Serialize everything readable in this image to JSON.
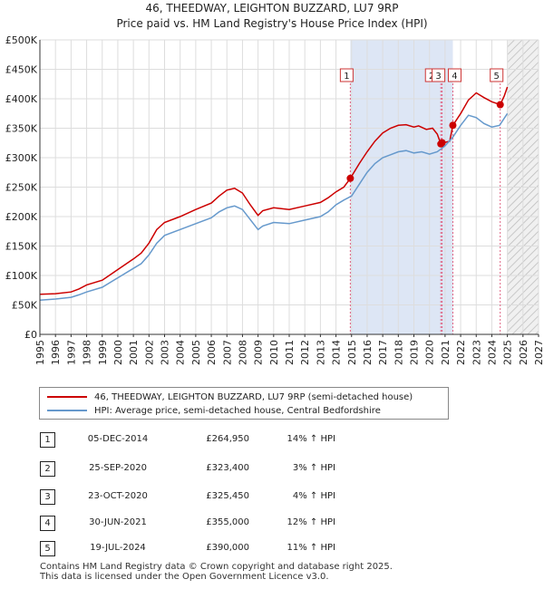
{
  "header": {
    "title_line1": "46, THEEDWAY, LEIGHTON BUZZARD, LU7 9RP",
    "title_line2": "Price paid vs. HM Land Registry's House Price Index (HPI)"
  },
  "colors": {
    "property": "#cc0000",
    "hpi": "#6699cc",
    "shade": "#dde6f5",
    "marker_line": "#e06080",
    "grid": "#dddddd"
  },
  "chart_data": {
    "type": "line",
    "xlim": [
      1995,
      2027
    ],
    "ylim": [
      0,
      500000
    ],
    "x_ticks": [
      "1995",
      "1996",
      "1997",
      "1998",
      "1999",
      "2000",
      "2001",
      "2002",
      "2003",
      "2004",
      "2005",
      "2006",
      "2007",
      "2008",
      "2009",
      "2010",
      "2011",
      "2012",
      "2013",
      "2014",
      "2015",
      "2016",
      "2017",
      "2018",
      "2019",
      "2020",
      "2021",
      "2022",
      "2023",
      "2024",
      "2025",
      "2026",
      "2027"
    ],
    "y_ticks": [
      {
        "value": 0,
        "label": "£0"
      },
      {
        "value": 50000,
        "label": "£50K"
      },
      {
        "value": 100000,
        "label": "£100K"
      },
      {
        "value": 150000,
        "label": "£150K"
      },
      {
        "value": 200000,
        "label": "£200K"
      },
      {
        "value": 250000,
        "label": "£250K"
      },
      {
        "value": 300000,
        "label": "£300K"
      },
      {
        "value": 350000,
        "label": "£350K"
      },
      {
        "value": 400000,
        "label": "£400K"
      },
      {
        "value": 450000,
        "label": "£450K"
      },
      {
        "value": 500000,
        "label": "£500K"
      }
    ],
    "shaded_range": [
      2014.92,
      2021.5
    ],
    "forecast_from": 2025.0,
    "series": [
      {
        "name": "46, THEEDWAY, LEIGHTON BUZZARD, LU7 9RP (semi-detached house)",
        "role": "property",
        "x": [
          1995,
          1996,
          1997,
          1997.5,
          1998,
          1999,
          2000,
          2001,
          2001.5,
          2002,
          2002.5,
          2003,
          2004,
          2005,
          2006,
          2006.5,
          2007,
          2007.5,
          2008,
          2008.5,
          2009,
          2009.3,
          2010,
          2011,
          2012,
          2013,
          2013.5,
          2014,
          2014.5,
          2014.92,
          2015.5,
          2016,
          2016.5,
          2017,
          2017.5,
          2018,
          2018.5,
          2019,
          2019.3,
          2019.8,
          2020.2,
          2020.5,
          2020.73,
          2020.81,
          2021.0,
          2021.3,
          2021.5,
          2022,
          2022.5,
          2023,
          2023.5,
          2024,
          2024.54,
          2024.8,
          2025.0
        ],
        "y": [
          68000,
          69000,
          72000,
          77000,
          84000,
          92000,
          110000,
          128000,
          138000,
          155000,
          178000,
          190000,
          200000,
          212000,
          223000,
          235000,
          245000,
          248000,
          240000,
          220000,
          202000,
          210000,
          215000,
          212000,
          218000,
          224000,
          232000,
          242000,
          250000,
          264950,
          290000,
          310000,
          328000,
          342000,
          350000,
          355000,
          356000,
          352000,
          354000,
          348000,
          350000,
          340000,
          323400,
          325450,
          326000,
          328000,
          355000,
          375000,
          398000,
          410000,
          402000,
          395000,
          390000,
          405000,
          420000
        ]
      },
      {
        "name": "HPI: Average price, semi-detached house, Central Bedfordshire",
        "role": "hpi",
        "x": [
          1995,
          1996,
          1997,
          1997.5,
          1998,
          1999,
          2000,
          2001,
          2001.5,
          2002,
          2002.5,
          2003,
          2004,
          2005,
          2006,
          2006.5,
          2007,
          2007.5,
          2008,
          2008.5,
          2009,
          2009.3,
          2010,
          2011,
          2012,
          2013,
          2013.5,
          2014,
          2014.5,
          2015,
          2015.5,
          2016,
          2016.5,
          2017,
          2017.5,
          2018,
          2018.5,
          2019,
          2019.5,
          2020,
          2020.5,
          2021,
          2021.5,
          2022,
          2022.5,
          2023,
          2023.5,
          2024,
          2024.5,
          2025.0
        ],
        "y": [
          58000,
          60000,
          63000,
          67000,
          72000,
          80000,
          96000,
          112000,
          120000,
          135000,
          155000,
          168000,
          178000,
          188000,
          198000,
          208000,
          215000,
          218000,
          212000,
          195000,
          178000,
          184000,
          190000,
          188000,
          194000,
          200000,
          208000,
          220000,
          228000,
          235000,
          255000,
          275000,
          290000,
          300000,
          305000,
          310000,
          312000,
          308000,
          310000,
          306000,
          310000,
          320000,
          335000,
          355000,
          372000,
          368000,
          358000,
          352000,
          355000,
          375000
        ]
      }
    ],
    "sales": [
      {
        "id": "1",
        "x": 2014.92,
        "price": 264950,
        "date": "05-DEC-2014",
        "price_label": "£264,950",
        "hpi": "14% ↑ HPI"
      },
      {
        "id": "2",
        "x": 2020.73,
        "price": 323400,
        "date": "25-SEP-2020",
        "price_label": "£323,400",
        "hpi": "3% ↑ HPI"
      },
      {
        "id": "3",
        "x": 2020.81,
        "price": 325450,
        "date": "23-OCT-2020",
        "price_label": "£325,450",
        "hpi": "4% ↑ HPI"
      },
      {
        "id": "4",
        "x": 2021.5,
        "price": 355000,
        "date": "30-JUN-2021",
        "price_label": "£355,000",
        "hpi": "12% ↑ HPI"
      },
      {
        "id": "5",
        "x": 2024.54,
        "price": 390000,
        "date": "19-JUL-2024",
        "price_label": "£390,000",
        "hpi": "11% ↑ HPI"
      }
    ]
  },
  "legend": {
    "property_label": "46, THEEDWAY, LEIGHTON BUZZARD, LU7 9RP (semi-detached house)",
    "hpi_label": "HPI: Average price, semi-detached house, Central Bedfordshire"
  },
  "footer": {
    "line1": "Contains HM Land Registry data © Crown copyright and database right 2025.",
    "line2": "This data is licensed under the Open Government Licence v3.0."
  }
}
